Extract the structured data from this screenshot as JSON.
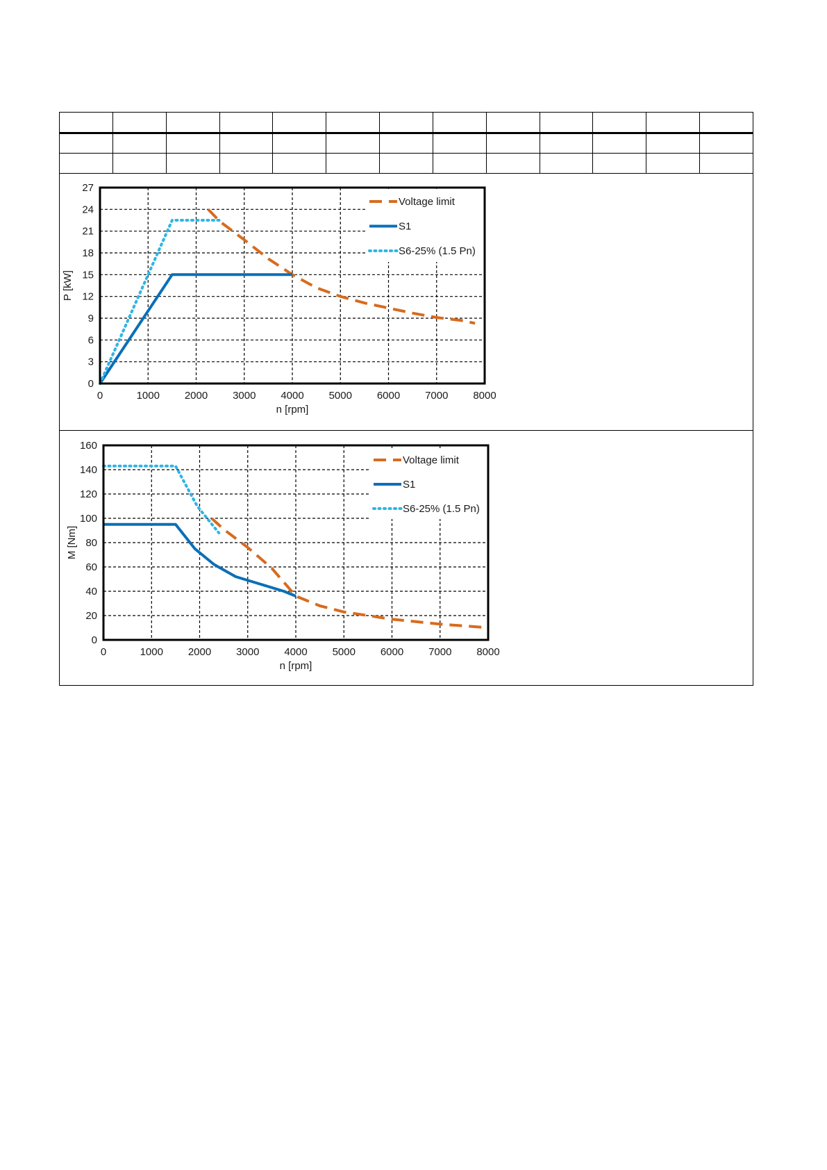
{
  "colors": {
    "voltage_limit": "#d76b1e",
    "s1": "#0a6fb8",
    "s6": "#2fb4e6",
    "grid": "#000000",
    "frame": "#000000"
  },
  "table": {
    "rows": 3,
    "cols": 13
  },
  "chart_data": [
    {
      "type": "line",
      "xlabel": "n [rpm]",
      "ylabel": "P [kW]",
      "xlim": [
        0,
        8000
      ],
      "ylim": [
        0,
        27
      ],
      "xticks": [
        0,
        1000,
        2000,
        3000,
        4000,
        5000,
        6000,
        7000,
        8000
      ],
      "yticks": [
        0,
        3,
        6,
        9,
        12,
        15,
        18,
        21,
        24,
        27
      ],
      "xtick_labels": [
        "0",
        "1000",
        "2000",
        "3000",
        "4000",
        "5000",
        "6000",
        "7000",
        "8000"
      ],
      "ytick_labels": [
        "0",
        "3",
        "6",
        "9",
        "12",
        "15",
        "18",
        "21",
        "24",
        "27"
      ],
      "grid": true,
      "legend_position": "top-right",
      "series": [
        {
          "name": "Voltage limit",
          "style": "dashed",
          "x": [
            2250,
            2500,
            3000,
            3500,
            4000,
            4500,
            5000,
            5500,
            6000,
            6500,
            7000,
            7500,
            7800
          ],
          "y": [
            24,
            22.3,
            19.8,
            17.2,
            15,
            13.2,
            12,
            11.1,
            10.4,
            9.7,
            9.1,
            8.7,
            8.3
          ]
        },
        {
          "name": "S1",
          "style": "solid",
          "x": [
            0,
            1500,
            4000
          ],
          "y": [
            0,
            15,
            15
          ]
        },
        {
          "name": "S6-25% (1.5 Pn)",
          "style": "dotted",
          "x": [
            0,
            1500,
            2500
          ],
          "y": [
            0,
            22.5,
            22.5
          ]
        }
      ]
    },
    {
      "type": "line",
      "xlabel": "n [rpm]",
      "ylabel": "M [Nm]",
      "xlim": [
        0,
        8000
      ],
      "ylim": [
        0,
        160
      ],
      "xticks": [
        0,
        1000,
        2000,
        3000,
        4000,
        5000,
        6000,
        7000,
        8000
      ],
      "yticks": [
        0,
        20,
        40,
        60,
        80,
        100,
        120,
        140,
        160
      ],
      "xtick_labels": [
        "0",
        "1000",
        "2000",
        "3000",
        "4000",
        "5000",
        "6000",
        "7000",
        "8000"
      ],
      "ytick_labels": [
        "0",
        "20",
        "40",
        "60",
        "80",
        "100",
        "120",
        "140",
        "160"
      ],
      "grid": true,
      "legend_position": "top-right",
      "series": [
        {
          "name": "Voltage limit",
          "style": "dashed",
          "x": [
            2250,
            2500,
            3000,
            3500,
            4000,
            4500,
            5000,
            5500,
            6000,
            6500,
            7000,
            7500,
            8000
          ],
          "y": [
            100,
            91,
            76,
            59,
            36,
            28,
            23,
            20,
            17,
            15,
            13,
            11.5,
            10
          ]
        },
        {
          "name": "S1",
          "style": "solid",
          "x": [
            0,
            1500,
            1900,
            2300,
            2750,
            3250,
            3750,
            4000
          ],
          "y": [
            95,
            95,
            75,
            62,
            52,
            46,
            40,
            36
          ]
        },
        {
          "name": "S6-25% (1.5 Pn)",
          "style": "dotted",
          "x": [
            0,
            1500,
            1950,
            2400
          ],
          "y": [
            143,
            143,
            110,
            88
          ]
        }
      ]
    }
  ]
}
